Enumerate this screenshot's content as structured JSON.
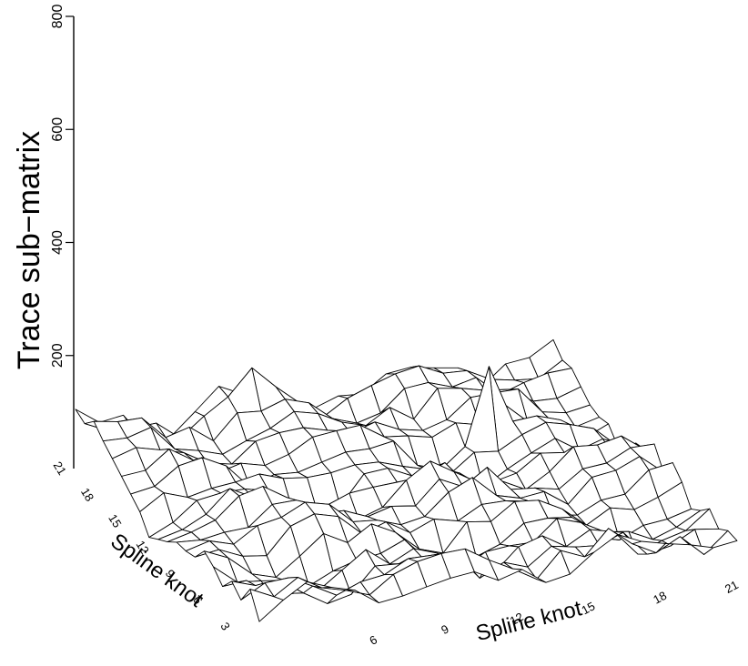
{
  "chart_data": {
    "type": "surface",
    "title": "",
    "zlabel": "Trace sub−matrix",
    "xlabel": "Spline knot",
    "ylabel": "Spline knot",
    "zlim": [
      0,
      800
    ],
    "z_ticks": [
      "200",
      "400",
      "600",
      "800"
    ],
    "x_ticks": [
      "6",
      "9",
      "12",
      "15",
      "18",
      "21"
    ],
    "y_ticks": [
      "3",
      "6",
      "9",
      "12",
      "15",
      "18",
      "21"
    ],
    "x_range": [
      1,
      21
    ],
    "y_range": [
      1,
      21
    ],
    "grid_size": 21,
    "surface_level_range": [
      0,
      160
    ],
    "peak_value": 180,
    "grid": false
  }
}
